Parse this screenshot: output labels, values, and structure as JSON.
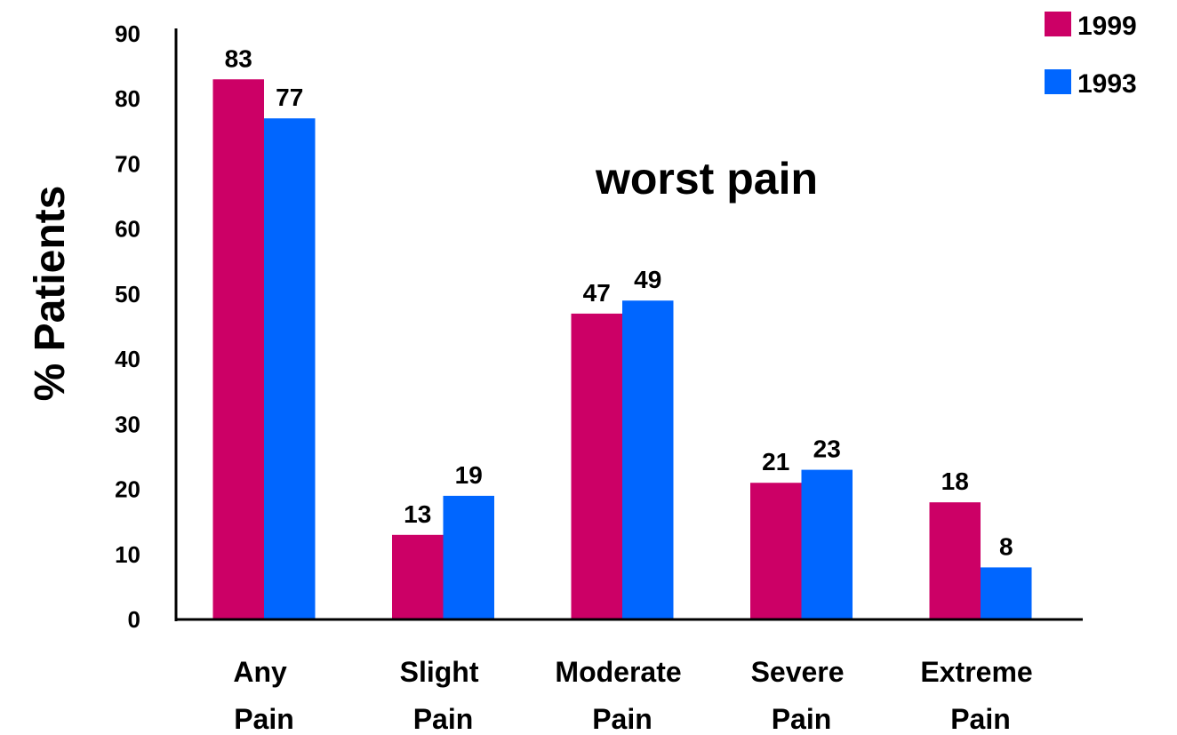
{
  "chart_data": {
    "type": "bar",
    "title": "worst pain",
    "y_label": "% Patients",
    "categories": [
      "Any Pain",
      "Slight Pain",
      "Moderate Pain",
      "Severe Pain",
      "Extreme Pain"
    ],
    "series": [
      {
        "name": "1999",
        "color": "#cc0066",
        "values": [
          83,
          13,
          47,
          21,
          18
        ]
      },
      {
        "name": "1993",
        "color": "#0066ff",
        "values": [
          77,
          19,
          49,
          23,
          8
        ]
      }
    ],
    "ylim": [
      0,
      90
    ],
    "yticks": [
      0,
      10,
      20,
      30,
      40,
      50,
      60,
      70,
      80,
      90
    ],
    "grid": false,
    "legend": "top-right"
  }
}
